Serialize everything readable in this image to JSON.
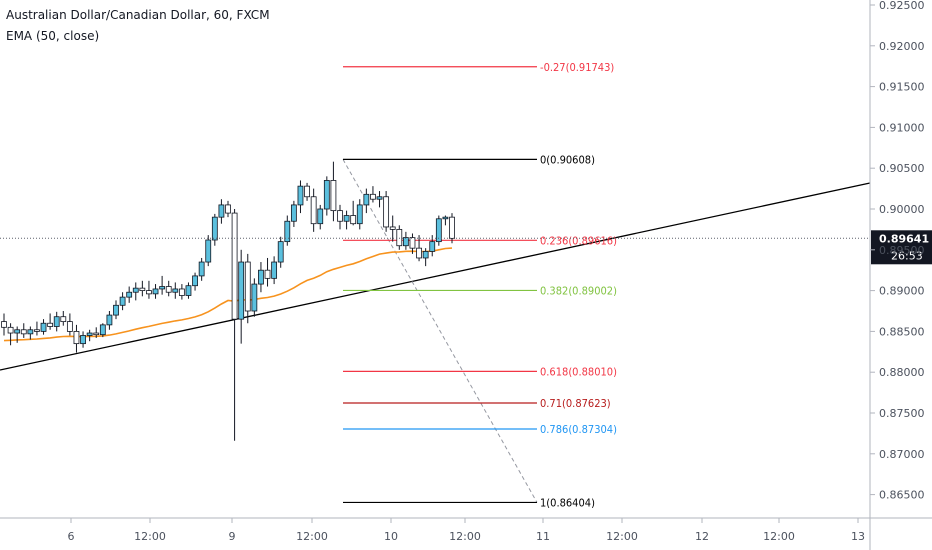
{
  "header": {
    "symbol": "Australian Dollar/Canadian Dollar, 60, FXCM",
    "indicator": "EMA (50, close)"
  },
  "colors": {
    "up_candle": "#5bc0de",
    "down_candle": "#ffffff",
    "candle_border": "#131722",
    "ema": "#f7931e",
    "trendline": "#000000",
    "price_line": "#5d606b",
    "price_tag_bg": "#131722",
    "fib_0": "#000000",
    "fib_neg027": "#f23645",
    "fib_0236": "#f23645",
    "fib_0382": "#81c341",
    "fib_0618": "#f23645",
    "fib_071": "#b71c1c",
    "fib_0786": "#2196f3",
    "fib_1": "#000000"
  },
  "price_tag": {
    "price": "0.89641",
    "countdown": "26:53"
  },
  "chart_data": {
    "type": "candlestick",
    "title": "Australian Dollar/Canadian Dollar, 60, FXCM",
    "y_axis": {
      "ticks": [
        "0.86500",
        "0.87000",
        "0.87500",
        "0.88000",
        "0.88500",
        "0.89000",
        "0.89500",
        "0.90000",
        "0.90500",
        "0.91000",
        "0.91500",
        "0.92000",
        "0.92500"
      ],
      "ylim": [
        0.8617,
        0.926
      ]
    },
    "x_axis": {
      "ticks": [
        "6",
        "12:00",
        "9",
        "12:00",
        "10",
        "12:00",
        "11",
        "12:00",
        "12",
        "12:00",
        "13"
      ]
    },
    "ema": {
      "name": "EMA (50, close)"
    },
    "fib_retracement": {
      "levels": [
        {
          "ratio": "-0.27",
          "price": 0.91743,
          "label": "-0.27(0.91743)"
        },
        {
          "ratio": "0",
          "price": 0.90608,
          "label": "0(0.90608)"
        },
        {
          "ratio": "0.236",
          "price": 0.89616,
          "label": "0.236(0.89616)"
        },
        {
          "ratio": "0.382",
          "price": 0.89002,
          "label": "0.382(0.89002)"
        },
        {
          "ratio": "0.618",
          "price": 0.8801,
          "label": "0.618(0.88010)"
        },
        {
          "ratio": "0.71",
          "price": 0.87623,
          "label": "0.71(0.87623)"
        },
        {
          "ratio": "0.786",
          "price": 0.87304,
          "label": "0.786(0.87304)"
        },
        {
          "ratio": "1",
          "price": 0.86404,
          "label": "1(0.86404)"
        }
      ]
    },
    "current_price": 0.89641,
    "candles": [
      [
        0.8862,
        0.8872,
        0.8845,
        0.8855
      ],
      [
        0.8855,
        0.886,
        0.8833,
        0.8848
      ],
      [
        0.8848,
        0.8856,
        0.8836,
        0.8852
      ],
      [
        0.8852,
        0.886,
        0.8842,
        0.8847
      ],
      [
        0.8847,
        0.8856,
        0.884,
        0.8852
      ],
      [
        0.8852,
        0.8862,
        0.8845,
        0.885
      ],
      [
        0.885,
        0.8865,
        0.8846,
        0.886
      ],
      [
        0.886,
        0.8872,
        0.8852,
        0.8856
      ],
      [
        0.8856,
        0.8874,
        0.885,
        0.8868
      ],
      [
        0.8868,
        0.8875,
        0.8857,
        0.8862
      ],
      [
        0.8862,
        0.8872,
        0.8845,
        0.885
      ],
      [
        0.885,
        0.8858,
        0.8824,
        0.8835
      ],
      [
        0.8835,
        0.885,
        0.883,
        0.8845
      ],
      [
        0.8845,
        0.8852,
        0.8838,
        0.8848
      ],
      [
        0.8848,
        0.8855,
        0.8842,
        0.8846
      ],
      [
        0.8846,
        0.886,
        0.8843,
        0.8858
      ],
      [
        0.8858,
        0.8875,
        0.8852,
        0.887
      ],
      [
        0.887,
        0.8888,
        0.8865,
        0.8882
      ],
      [
        0.8882,
        0.8898,
        0.8876,
        0.8892
      ],
      [
        0.8892,
        0.8905,
        0.8885,
        0.8898
      ],
      [
        0.8898,
        0.891,
        0.8888,
        0.8903
      ],
      [
        0.8903,
        0.8912,
        0.8893,
        0.89
      ],
      [
        0.89,
        0.8912,
        0.889,
        0.8896
      ],
      [
        0.8896,
        0.8908,
        0.889,
        0.8902
      ],
      [
        0.8902,
        0.8918,
        0.8895,
        0.8905
      ],
      [
        0.8905,
        0.8912,
        0.8893,
        0.8898
      ],
      [
        0.8898,
        0.891,
        0.889,
        0.8902
      ],
      [
        0.8902,
        0.8908,
        0.8889,
        0.8894
      ],
      [
        0.8894,
        0.891,
        0.889,
        0.8906
      ],
      [
        0.8906,
        0.8922,
        0.89,
        0.8918
      ],
      [
        0.8918,
        0.894,
        0.8912,
        0.8935
      ],
      [
        0.8935,
        0.8968,
        0.893,
        0.8962
      ],
      [
        0.8962,
        0.8994,
        0.8955,
        0.899
      ],
      [
        0.899,
        0.9012,
        0.8982,
        0.9005
      ],
      [
        0.9005,
        0.901,
        0.899,
        0.8995
      ],
      [
        0.8995,
        0.9,
        0.8716,
        0.8865
      ],
      [
        0.8865,
        0.895,
        0.8835,
        0.8935
      ],
      [
        0.8935,
        0.8945,
        0.886,
        0.8875
      ],
      [
        0.8875,
        0.8915,
        0.8868,
        0.8908
      ],
      [
        0.8908,
        0.8935,
        0.8898,
        0.8925
      ],
      [
        0.8925,
        0.894,
        0.8905,
        0.8915
      ],
      [
        0.8915,
        0.8942,
        0.8908,
        0.8935
      ],
      [
        0.8935,
        0.8966,
        0.8928,
        0.896
      ],
      [
        0.896,
        0.8992,
        0.8955,
        0.8985
      ],
      [
        0.8985,
        0.901,
        0.8978,
        0.9005
      ],
      [
        0.9005,
        0.9035,
        0.8995,
        0.9028
      ],
      [
        0.9028,
        0.9032,
        0.901,
        0.9015
      ],
      [
        0.9015,
        0.9025,
        0.8972,
        0.8982
      ],
      [
        0.8982,
        0.9005,
        0.8975,
        0.9
      ],
      [
        0.9,
        0.904,
        0.8992,
        0.9035
      ],
      [
        0.9035,
        0.9058,
        0.8985,
        0.8998
      ],
      [
        0.8998,
        0.9005,
        0.8975,
        0.8985
      ],
      [
        0.8985,
        0.8998,
        0.8975,
        0.8992
      ],
      [
        0.8992,
        0.901,
        0.898,
        0.8982
      ],
      [
        0.8982,
        0.9012,
        0.8975,
        0.9005
      ],
      [
        0.9005,
        0.9025,
        0.8995,
        0.9018
      ],
      [
        0.9018,
        0.9028,
        0.9008,
        0.9012
      ],
      [
        0.9012,
        0.9022,
        0.9002,
        0.9015
      ],
      [
        0.9015,
        0.9022,
        0.8972,
        0.8978
      ],
      [
        0.8978,
        0.8992,
        0.896,
        0.8975
      ],
      [
        0.8975,
        0.898,
        0.895,
        0.8955
      ],
      [
        0.8955,
        0.8972,
        0.895,
        0.8965
      ],
      [
        0.8965,
        0.897,
        0.8945,
        0.8952
      ],
      [
        0.8952,
        0.8968,
        0.8936,
        0.894
      ],
      [
        0.894,
        0.8952,
        0.893,
        0.8948
      ],
      [
        0.8948,
        0.8968,
        0.8942,
        0.896
      ],
      [
        0.896,
        0.8992,
        0.8955,
        0.8988
      ],
      [
        0.8988,
        0.8992,
        0.898,
        0.899
      ],
      [
        0.899,
        0.8995,
        0.8958,
        0.8964
      ]
    ]
  }
}
